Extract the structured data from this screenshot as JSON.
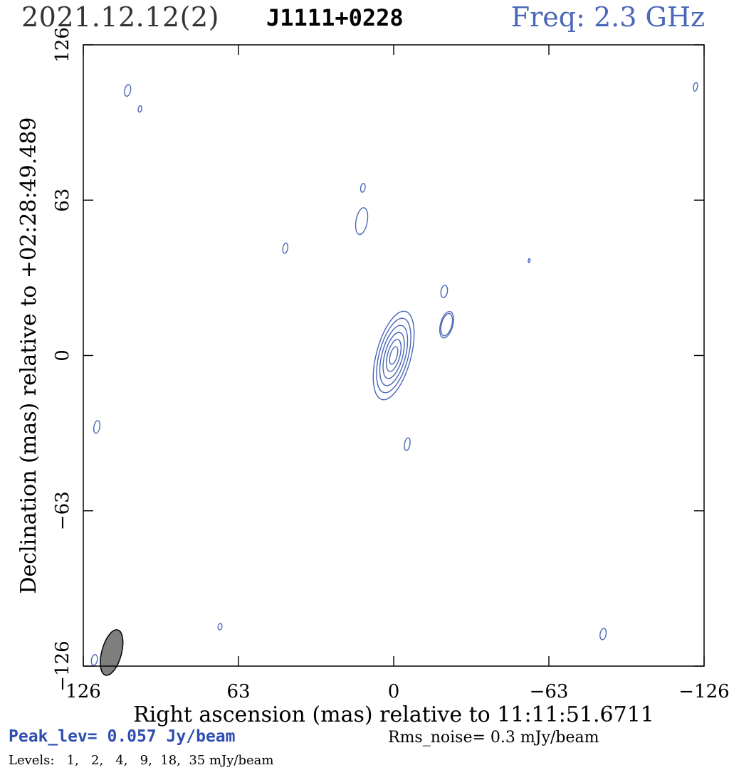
{
  "header": {
    "epoch": "2021.12.12(2)",
    "source": "J1111+0228",
    "frequency": "Freq: 2.3 GHz"
  },
  "footer": {
    "peak": "Peak_lev=  0.057 Jy/beam",
    "rms": "Rms_noise=  0.3 mJy/beam",
    "levels": "Levels:   1,   2,   4,   9,  18,  35 mJy/beam"
  },
  "chart_data": {
    "type": "contour",
    "xlabel": "Right ascension (mas) relative to 11:11:51.6711",
    "ylabel": "Declination (mas) relative to +02:28:49.489",
    "xlim": [
      126,
      -126
    ],
    "ylim": [
      -126,
      126
    ],
    "xticks": [
      "126",
      "63",
      "0",
      "−63",
      "−126"
    ],
    "yticks": [
      "−126",
      "−63",
      "0",
      "63",
      "126"
    ],
    "x_inverted": true,
    "grid": false,
    "colors": {
      "contour": "#4a67b8",
      "beam": "#7f7f7f",
      "axes": "#000000"
    },
    "contour_levels_mJy": [
      1,
      2,
      4,
      9,
      18,
      35
    ],
    "peak_Jy_per_beam": 0.057,
    "rms_mJy_per_beam": 0.3,
    "beam": {
      "x": 114.5,
      "y": -120.5,
      "bmaj": 9.5,
      "bmin": 4.0,
      "pa": 15
    },
    "components": [
      {
        "x": 0,
        "y": 0,
        "bmaj": 18.5,
        "bmin": 7.0,
        "pa": 15,
        "nlevels": 6
      },
      {
        "x": -21.5,
        "y": 12.5,
        "bmaj": 5.5,
        "bmin": 2.5,
        "pa": 15,
        "nlevels": 2
      },
      {
        "x": 13,
        "y": 54.5,
        "bmaj": 5.5,
        "bmin": 2.3,
        "pa": 10,
        "nlevels": 1
      },
      {
        "x": -20.5,
        "y": 26,
        "bmaj": 2.5,
        "bmin": 1.3,
        "pa": 10,
        "nlevels": 1
      },
      {
        "x": 12.5,
        "y": 68,
        "bmaj": 1.8,
        "bmin": 0.9,
        "pa": 10,
        "nlevels": 1
      },
      {
        "x": 44,
        "y": 43.5,
        "bmaj": 2.1,
        "bmin": 1.0,
        "pa": 10,
        "nlevels": 1
      },
      {
        "x": 108,
        "y": 107.5,
        "bmaj": 2.4,
        "bmin": 1.2,
        "pa": 10,
        "nlevels": 1
      },
      {
        "x": 103,
        "y": 100,
        "bmaj": 1.3,
        "bmin": 0.7,
        "pa": 10,
        "nlevels": 1
      },
      {
        "x": -122.5,
        "y": 109,
        "bmaj": 1.8,
        "bmin": 0.8,
        "pa": 10,
        "nlevels": 1
      },
      {
        "x": -55,
        "y": 38.5,
        "bmaj": 0.8,
        "bmin": 0.3,
        "pa": 10,
        "nlevels": 1
      },
      {
        "x": -5.5,
        "y": -36,
        "bmaj": 2.6,
        "bmin": 1.1,
        "pa": 10,
        "nlevels": 1
      },
      {
        "x": 120.5,
        "y": -29,
        "bmaj": 2.6,
        "bmin": 1.2,
        "pa": 10,
        "nlevels": 1
      },
      {
        "x": 70.5,
        "y": -110,
        "bmaj": 1.3,
        "bmin": 0.8,
        "pa": 10,
        "nlevels": 1
      },
      {
        "x": -85,
        "y": -113,
        "bmaj": 2.3,
        "bmin": 1.2,
        "pa": 10,
        "nlevels": 1
      },
      {
        "x": 121.5,
        "y": -123.5,
        "bmaj": 2.2,
        "bmin": 1.2,
        "pa": 10,
        "nlevels": 1
      }
    ]
  }
}
